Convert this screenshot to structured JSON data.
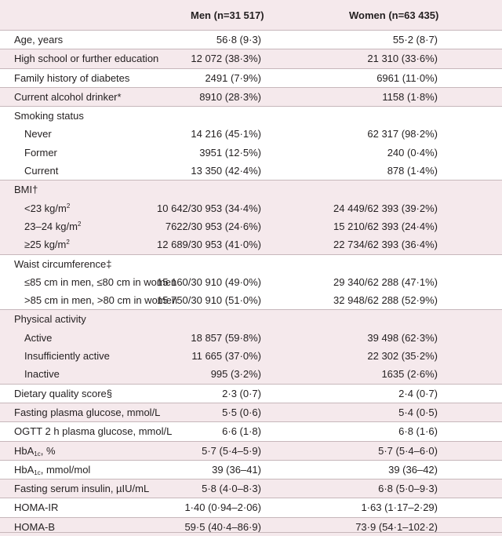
{
  "header": {
    "men": "Men (n=31 517)",
    "women": "Women (n=63 435)"
  },
  "rows": {
    "age": {
      "label": "Age, years",
      "men": "56·8 (9·3)",
      "women": "55·2 (8·7)"
    },
    "edu": {
      "label": "High school or further education",
      "men": "12 072 (38·3%)",
      "women": "21 310 (33·6%)"
    },
    "fam": {
      "label": "Family history of diabetes",
      "men": "2491 (7·9%)",
      "women": "6961 (11·0%)"
    },
    "alc": {
      "label": "Current alcohol drinker*",
      "men": "8910 (28·3%)",
      "women": "1158 (1·8%)"
    },
    "smoke_h": {
      "label": "Smoking status"
    },
    "never": {
      "label": "Never",
      "men": "14 216 (45·1%)",
      "women": "62 317 (98·2%)"
    },
    "former": {
      "label": "Former",
      "men": "3951 (12·5%)",
      "women": "240 (0·4%)"
    },
    "current": {
      "label": "Current",
      "men": "13 350 (42·4%)",
      "women": "878 (1·4%)"
    },
    "bmi_h": {
      "label": "BMI†"
    },
    "bmi1": {
      "label": "<23 kg/m",
      "sup": "2",
      "men": "10 642/30 953 (34·4%)",
      "women": "24 449/62 393 (39·2%)"
    },
    "bmi2": {
      "label": "23–24 kg/m",
      "sup": "2",
      "men": "7622/30 953 (24·6%)",
      "women": "15 210/62 393 (24·4%)"
    },
    "bmi3": {
      "label": "≥25 kg/m",
      "sup": "2",
      "men": "12 689/30 953 (41·0%)",
      "women": "22 734/62 393 (36·4%)"
    },
    "waist_h": {
      "label": "Waist circumference‡"
    },
    "waist1": {
      "label": "≤85 cm in men, ≤80 cm in women",
      "men": "15 160/30 910 (49·0%)",
      "women": "29 340/62 288 (47·1%)"
    },
    "waist2": {
      "label": ">85 cm in men, >80 cm in women",
      "men": "15 750/30 910 (51·0%)",
      "women": "32 948/62 288 (52·9%)"
    },
    "pa_h": {
      "label": "Physical activity"
    },
    "active": {
      "label": "Active",
      "men": "18 857 (59·8%)",
      "women": "39 498 (62·3%)"
    },
    "insuff": {
      "label": "Insufficiently active",
      "men": "11 665 (37·0%)",
      "women": "22 302 (35·2%)"
    },
    "inactive": {
      "label": "Inactive",
      "men": "995 (3·2%)",
      "women": "1635 (2·6%)"
    },
    "diet": {
      "label": "Dietary quality score§",
      "men": "2·3 (0·7)",
      "women": "2·4 (0·7)"
    },
    "fpg": {
      "label": "Fasting plasma glucose, mmol/L",
      "men": "5·5 (0·6)",
      "women": "5·4 (0·5)"
    },
    "ogtt": {
      "label": "OGTT 2 h plasma glucose, mmol/L",
      "men": "6·6 (1·8)",
      "women": "6·8 (1·6)"
    },
    "hba1": {
      "label_a": "HbA",
      "label_sub": "1c",
      "label_b": ", %",
      "men": "5·7 (5·4–5·9)",
      "women": "5·7 (5·4–6·0)"
    },
    "hba2": {
      "label_a": "HbA",
      "label_sub": "1c",
      "label_b": ", mmol/mol",
      "men": "39 (36–41)",
      "women": "39 (36–42)"
    },
    "insulin": {
      "label": "Fasting serum insulin, µIU/mL",
      "men": "5·8 (4·0–8·3)",
      "women": "6·8 (5·0–9·3)"
    },
    "homair": {
      "label": "HOMA-IR",
      "men": "1·40 (0·94–2·06)",
      "women": "1·63 (1·17–2·29)"
    },
    "homab": {
      "label": "HOMA-B",
      "men": "59·5 (40·4–86·9)",
      "women": "73·9 (54·1–102·2)"
    }
  }
}
